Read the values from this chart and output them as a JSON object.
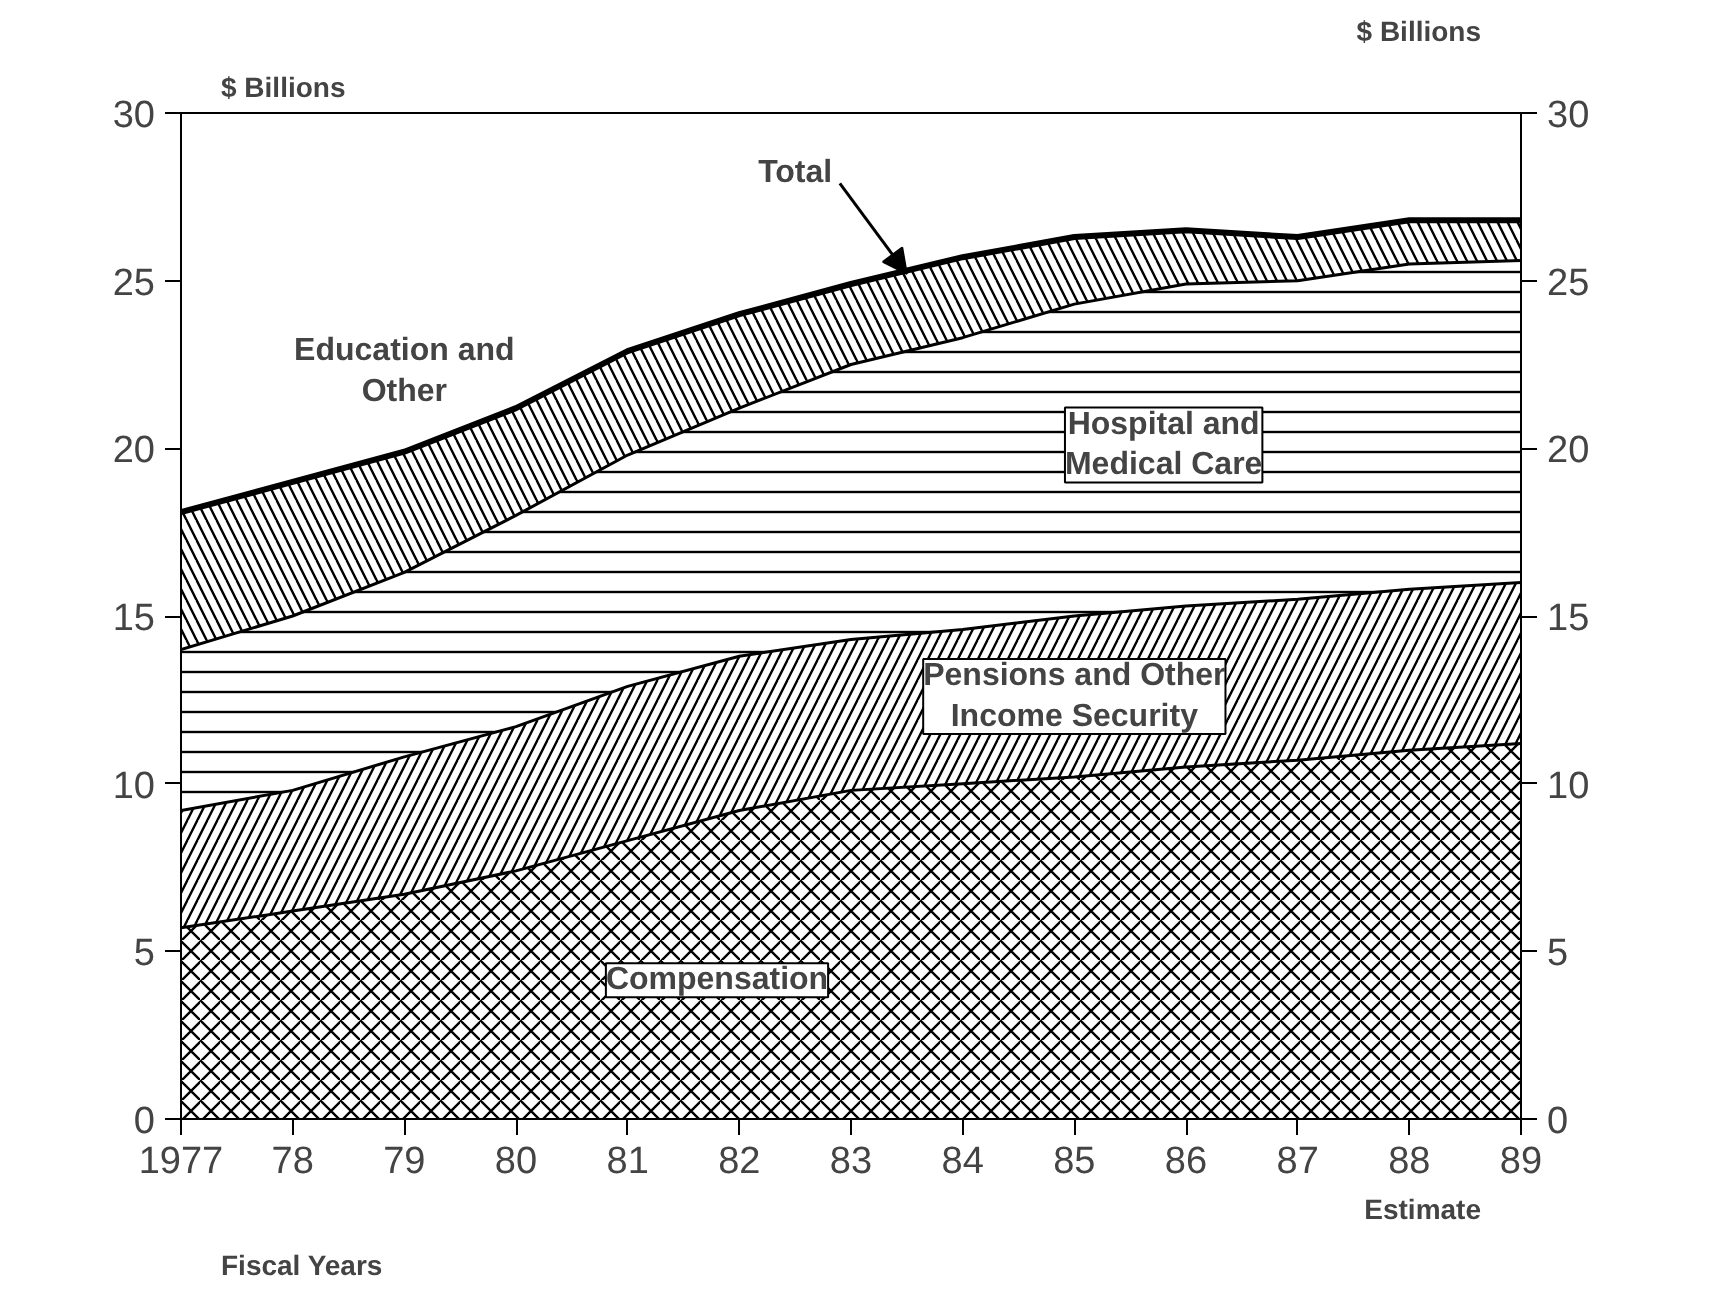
{
  "chart_data": {
    "type": "area",
    "stacked": true,
    "xlabel": "Fiscal Years",
    "ylabel": "$ Billions",
    "y2label": "$ Billions",
    "x": [
      1977,
      1978,
      1979,
      1980,
      1981,
      1982,
      1983,
      1984,
      1985,
      1986,
      1987,
      1988,
      1989
    ],
    "series": [
      {
        "name": "Compensation",
        "color": "#000000",
        "values": [
          5.7,
          6.2,
          6.7,
          7.4,
          8.3,
          9.2,
          9.8,
          10.0,
          10.2,
          10.5,
          10.7,
          11.0,
          11.2
        ]
      },
      {
        "name": "Pensions and Other Income Security",
        "color": "#000000",
        "values": [
          3.5,
          3.6,
          4.1,
          4.3,
          4.6,
          4.6,
          4.5,
          4.6,
          4.8,
          4.8,
          4.8,
          4.8,
          4.8
        ]
      },
      {
        "name": "Hospital and Medical Care",
        "color": "#000000",
        "values": [
          4.8,
          5.2,
          5.5,
          6.3,
          6.9,
          7.4,
          8.2,
          8.7,
          9.3,
          9.6,
          9.5,
          9.7,
          9.6
        ]
      },
      {
        "name": "Education and Other",
        "color": "#000000",
        "values": [
          4.1,
          4.0,
          3.6,
          3.2,
          3.1,
          2.8,
          2.4,
          2.4,
          2.0,
          1.6,
          1.3,
          1.3,
          1.2
        ]
      }
    ],
    "xlim": [
      1977,
      1989
    ],
    "xticks": [
      1977,
      {
        "value": 1978,
        "label": "78"
      },
      {
        "value": 1979,
        "label": "79"
      },
      {
        "value": 1980,
        "label": "80"
      },
      {
        "value": 1981,
        "label": "81"
      },
      {
        "value": 1982,
        "label": "82"
      },
      {
        "value": 1983,
        "label": "83"
      },
      {
        "value": 1984,
        "label": "84"
      },
      {
        "value": 1985,
        "label": "85"
      },
      {
        "value": 1986,
        "label": "86"
      },
      {
        "value": 1987,
        "label": "87"
      },
      {
        "value": 1988,
        "label": "88"
      },
      {
        "value": 1989,
        "label": "89"
      }
    ],
    "ylim": [
      0,
      30
    ],
    "yticks": [
      0,
      5,
      10,
      15,
      20,
      25,
      30
    ],
    "y2lim": [
      0,
      30
    ],
    "y2ticks": [
      0,
      5,
      10,
      15,
      20,
      25,
      30
    ],
    "annotations": [
      {
        "text": "Total",
        "x": 1983.5,
        "y": 25.2
      },
      "Estimate"
    ],
    "grid": false
  }
}
